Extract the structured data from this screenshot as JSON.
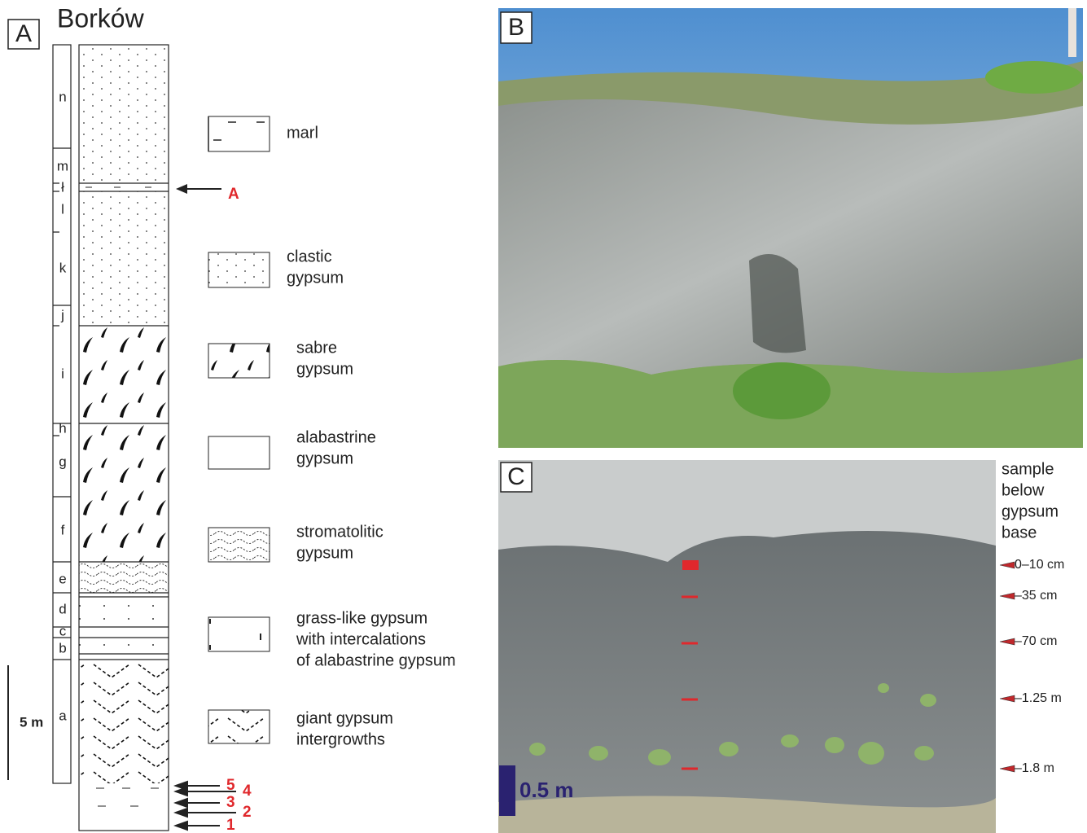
{
  "panel_a": {
    "label": "A",
    "title": "Borków",
    "units": [
      "n",
      "m",
      "ł",
      "l",
      "k",
      "j",
      "i",
      "h",
      "g",
      "f",
      "e",
      "d",
      "c",
      "b",
      "a"
    ],
    "scale": "5 m",
    "marker": "A",
    "samples": [
      "5",
      "4",
      "3",
      "2",
      "1"
    ]
  },
  "legend": [
    {
      "lines": [
        "marl"
      ]
    },
    {
      "lines": [
        "clastic",
        "gypsum"
      ]
    },
    {
      "lines": [
        "sabre",
        "gypsum"
      ]
    },
    {
      "lines": [
        "alabastrine",
        "gypsum"
      ]
    },
    {
      "lines": [
        "stromatolitic",
        "gypsum"
      ]
    },
    {
      "lines": [
        "grass-like gypsum",
        "with intercalations",
        "of alabastrine gypsum"
      ]
    },
    {
      "lines": [
        "giant gypsum",
        "intergrowths"
      ]
    }
  ],
  "panel_b": {
    "label": "B"
  },
  "panel_c": {
    "label": "C",
    "heading": [
      "sample",
      "below",
      "gypsum",
      "base"
    ],
    "depths": [
      "0–10 cm",
      "–35 cm",
      "–70 cm",
      "–1.25 m",
      "–1.8 m"
    ],
    "scale": "0.5 m"
  }
}
